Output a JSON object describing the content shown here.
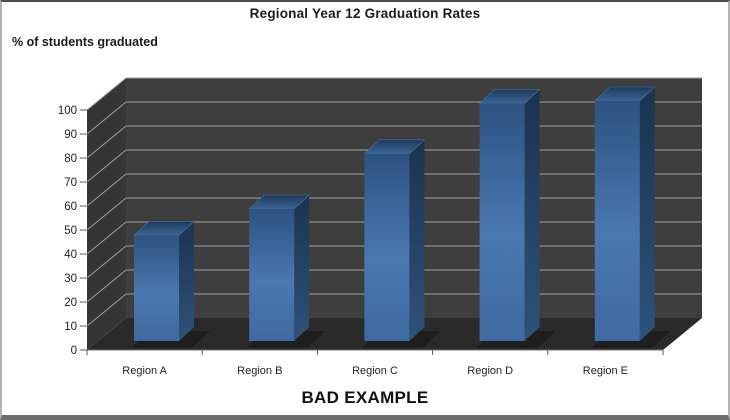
{
  "chart_data": {
    "type": "bar",
    "style": "3d-column",
    "title": "Regional Year 12 Graduation Rates",
    "categories": [
      "Region A",
      "Region B",
      "Region C",
      "Region D",
      "Region E"
    ],
    "values": [
      44,
      55,
      78,
      99,
      100
    ],
    "series": [
      {
        "name": "% of students graduated",
        "values": [
          44,
          55,
          78,
          99,
          100
        ]
      }
    ],
    "xlabel": "",
    "ylabel": "% of students graduated",
    "ylim": [
      0,
      100
    ],
    "yticks": [
      0,
      10,
      20,
      30,
      40,
      50,
      60,
      70,
      80,
      90,
      100
    ],
    "grid": true,
    "legend": "none",
    "annotation": "BAD EXAMPLE",
    "colors": {
      "background": "#ffffff",
      "wall_back": "#3e3e3e",
      "wall_left": "#353535",
      "floor": "#2a2a2a",
      "gridline": "#a0a0a0",
      "axis_tick": "#595959",
      "bar_front_top": "#2d5282",
      "bar_front_mid": "#4a78b0",
      "bar_front_bottom": "#3f6aa1",
      "bar_top_back": "#1e3a59",
      "bar_top_front": "#3a6496",
      "bar_side_top": "#1b3350",
      "bar_side_bottom": "#2e527b",
      "text": "#1f1f1f"
    }
  }
}
